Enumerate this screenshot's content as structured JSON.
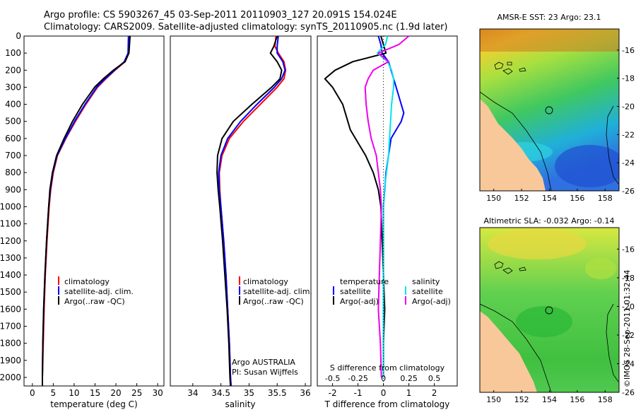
{
  "title_line1": "Argo profile: CS 5903267_45 03-Sep-2011 20110903_127 20.091S 154.024E",
  "title_line2": "Climatology: CARS2009. Satellite-adjusted climatology: synTS_20110905.nc (1.9d later)",
  "colors": {
    "climatology": "#ff0000",
    "satellite": "#0000ff",
    "argo": "#000000",
    "salinity_satellite": "#00e5ee",
    "salinity_argo": "#ee00ee",
    "land": "#f8c89a"
  },
  "depth_axis": {
    "ylim": [
      0,
      2050
    ],
    "ticks": [
      0,
      100,
      200,
      300,
      400,
      500,
      600,
      700,
      800,
      900,
      1000,
      1100,
      1200,
      1300,
      1400,
      1500,
      1600,
      1700,
      1800,
      1900,
      2000
    ]
  },
  "temperature_panel": {
    "xlabel": "temperature (deg C)",
    "xlim": [
      -2,
      31.5
    ],
    "xticks": [
      "0",
      "5",
      "10",
      "15",
      "20",
      "25",
      "30"
    ],
    "legend": [
      "climatology",
      "satellite-adj. clim.",
      "Argo(..raw -QC)"
    ]
  },
  "salinity_panel": {
    "xlabel": "salinity",
    "xlim": [
      33.6,
      36.1
    ],
    "xticks": [
      "34",
      "34.5",
      "35",
      "35.5",
      "36"
    ],
    "legend": [
      "climatology",
      "satellite-adj. clim.",
      "Argo(..raw -QC)"
    ],
    "note_line1": "Argo AUSTRALIA",
    "note_line2": "PI: Susan Wijffels"
  },
  "difference_panel": {
    "xlabel": "T difference from climatology",
    "xlim": [
      -2.6,
      2.9
    ],
    "xticks": [
      "-2",
      "-1",
      "0",
      "1",
      "2"
    ],
    "top_label": "S difference from climatology",
    "s_ticks": [
      "-0.5",
      "-0.25",
      "0",
      "0.25",
      "0.5"
    ],
    "legend_temperature_title": "temperature",
    "legend_salinity_title": "salinity",
    "legend_satellite": "satellite",
    "legend_argo": "Argo(-adj)"
  },
  "map_sst": {
    "title": "AMSR-E SST: 23  Argo: 23.1",
    "xticks": [
      "150",
      "152",
      "154",
      "156",
      "158"
    ],
    "yticks": [
      "-16",
      "-18",
      "-20",
      "-22",
      "-24",
      "-26"
    ]
  },
  "map_sla": {
    "title": "Altimetric SLA: -0.032  Argo: -0.14",
    "xticks": [
      "150",
      "152",
      "154",
      "156",
      "158"
    ],
    "yticks": [
      "-16",
      "-18",
      "-20",
      "-22",
      "-24",
      "-26"
    ]
  },
  "credit": "©IMOS 28-Sep-2011 01:32:44",
  "chart_data": [
    {
      "type": "line",
      "title": "temperature profile",
      "xlabel": "temperature (deg C)",
      "ylabel": "depth",
      "xlim": [
        -2,
        31.5
      ],
      "ylim": [
        0,
        2050
      ],
      "series": [
        {
          "name": "climatology",
          "color": "#ff0000",
          "depth": [
            0,
            100,
            150,
            200,
            250,
            300,
            400,
            500,
            600,
            700,
            800,
            900,
            1000,
            1200,
            1400,
            1600,
            1800,
            2000,
            2050
          ],
          "values": [
            23.3,
            23.1,
            22.2,
            19.8,
            17.6,
            15.6,
            12.8,
            10.3,
            8.0,
            6.0,
            5.0,
            4.4,
            4.0,
            3.5,
            3.1,
            2.8,
            2.6,
            2.4,
            2.4
          ]
        },
        {
          "name": "satellite-adj. clim.",
          "color": "#0000ff",
          "depth": [
            0,
            100,
            150,
            200,
            250,
            300,
            400,
            500,
            600,
            700,
            800,
            900,
            1000,
            1200,
            1400,
            1600,
            1800,
            2000,
            2050
          ],
          "values": [
            23.0,
            22.9,
            22.0,
            19.7,
            17.4,
            15.4,
            12.6,
            10.1,
            7.9,
            5.9,
            4.9,
            4.3,
            3.9,
            3.4,
            3.0,
            2.7,
            2.5,
            2.4,
            2.4
          ]
        },
        {
          "name": "Argo(..raw -QC)",
          "color": "#000000",
          "depth": [
            0,
            100,
            150,
            200,
            250,
            300,
            400,
            500,
            600,
            700,
            800,
            900,
            1000,
            1200,
            1400,
            1600,
            1800,
            2000,
            2050
          ],
          "values": [
            23.4,
            23.1,
            22.2,
            19.4,
            17.0,
            14.9,
            12.0,
            9.6,
            7.6,
            5.8,
            4.8,
            4.2,
            3.9,
            3.4,
            3.0,
            2.7,
            2.5,
            2.4,
            2.4
          ]
        }
      ]
    },
    {
      "type": "line",
      "title": "salinity profile",
      "xlabel": "salinity",
      "ylabel": "depth",
      "xlim": [
        33.6,
        36.1
      ],
      "ylim": [
        0,
        2050
      ],
      "series": [
        {
          "name": "climatology",
          "color": "#ff0000",
          "depth": [
            0,
            60,
            100,
            150,
            200,
            250,
            300,
            400,
            500,
            600,
            700,
            800,
            900,
            1000,
            1200,
            1400,
            1600,
            1800,
            2000,
            2050
          ],
          "values": [
            35.48,
            35.46,
            35.52,
            35.62,
            35.65,
            35.62,
            35.5,
            35.2,
            34.9,
            34.65,
            34.52,
            34.47,
            34.48,
            34.5,
            34.55,
            34.59,
            34.62,
            34.65,
            34.67,
            34.68
          ]
        },
        {
          "name": "satellite-adj. clim.",
          "color": "#0000ff",
          "depth": [
            0,
            60,
            100,
            150,
            200,
            250,
            300,
            400,
            500,
            600,
            700,
            800,
            900,
            1000,
            1200,
            1400,
            1600,
            1800,
            2000,
            2050
          ],
          "values": [
            35.52,
            35.5,
            35.5,
            35.6,
            35.64,
            35.58,
            35.45,
            35.14,
            34.85,
            34.62,
            34.5,
            34.46,
            34.47,
            34.5,
            34.55,
            34.59,
            34.62,
            34.65,
            34.67,
            34.68
          ]
        },
        {
          "name": "Argo(..raw -QC)",
          "color": "#000000",
          "depth": [
            0,
            60,
            100,
            150,
            200,
            250,
            300,
            400,
            500,
            600,
            700,
            800,
            900,
            1000,
            1200,
            1400,
            1600,
            1800,
            2000,
            2050
          ],
          "values": [
            35.5,
            35.44,
            35.38,
            35.5,
            35.58,
            35.55,
            35.4,
            35.05,
            34.72,
            34.52,
            34.44,
            34.43,
            34.45,
            34.48,
            34.53,
            34.57,
            34.61,
            34.64,
            34.66,
            34.67
          ]
        }
      ]
    },
    {
      "type": "line",
      "title": "difference from climatology",
      "xlabel": "T difference from climatology",
      "ylabel": "depth",
      "xlim": [
        -2.6,
        2.9
      ],
      "ylim": [
        0,
        2050
      ],
      "series": [
        {
          "name": "temperature satellite",
          "color": "#0000ff",
          "depth": [
            0,
            50,
            100,
            150,
            200,
            250,
            300,
            350,
            400,
            450,
            500,
            550,
            600,
            700,
            800,
            900,
            1000,
            1200,
            1400,
            1600,
            1800,
            2000
          ],
          "values": [
            -0.2,
            -0.1,
            -0.05,
            0.2,
            0.3,
            0.4,
            0.5,
            0.6,
            0.7,
            0.8,
            0.7,
            0.5,
            0.3,
            0.2,
            0.1,
            0.05,
            0.0,
            0.0,
            0.0,
            0.0,
            0.0,
            0.0
          ]
        },
        {
          "name": "temperature Argo(-adj)",
          "color": "#000000",
          "depth": [
            0,
            50,
            100,
            150,
            200,
            250,
            300,
            350,
            400,
            450,
            500,
            550,
            600,
            700,
            800,
            900,
            1000,
            1200,
            1400,
            1600,
            1800,
            2000
          ],
          "values": [
            -0.1,
            0.0,
            0.1,
            -1.2,
            -1.9,
            -2.3,
            -2.0,
            -1.8,
            -1.6,
            -1.5,
            -1.4,
            -1.3,
            -1.1,
            -0.7,
            -0.4,
            -0.2,
            -0.1,
            -0.05,
            0.0,
            0.05,
            0.0,
            0.0
          ]
        },
        {
          "name": "salinity satellite",
          "color": "#00e5ee",
          "depth": [
            0,
            50,
            100,
            150,
            200,
            250,
            300,
            400,
            500,
            600,
            700,
            800,
            900,
            1000,
            1200,
            1400,
            1600,
            1800,
            2000
          ],
          "s_values": [
            0.04,
            0.02,
            -0.06,
            0.04,
            0.08,
            0.1,
            0.1,
            0.08,
            0.07,
            0.06,
            0.05,
            0.03,
            0.01,
            0.0,
            0.0,
            0.0,
            0.0,
            0.0,
            0.0
          ]
        },
        {
          "name": "salinity Argo(-adj)",
          "color": "#ee00ee",
          "depth": [
            0,
            50,
            100,
            150,
            200,
            250,
            300,
            400,
            500,
            600,
            700,
            800,
            900,
            1000,
            1200,
            1400,
            1600,
            1800,
            2000
          ],
          "s_values": [
            0.25,
            0.15,
            -0.05,
            0.05,
            -0.1,
            -0.15,
            -0.18,
            -0.17,
            -0.15,
            -0.12,
            -0.07,
            -0.05,
            -0.03,
            -0.02,
            -0.03,
            -0.04,
            -0.05,
            -0.03,
            -0.02
          ]
        }
      ]
    },
    {
      "type": "heatmap",
      "title": "AMSR-E SST: 23  Argo: 23.1",
      "xlim": [
        149,
        159
      ],
      "ylim": [
        -26,
        -14.5
      ],
      "x_ticks": [
        150,
        152,
        154,
        156,
        158
      ],
      "y_ticks": [
        -16,
        -18,
        -20,
        -22,
        -24,
        -26
      ],
      "argo_position": [
        154.024,
        -20.091
      ]
    },
    {
      "type": "heatmap",
      "title": "Altimetric SLA: -0.032  Argo: -0.14",
      "xlim": [
        149,
        159
      ],
      "ylim": [
        -26,
        -14.5
      ],
      "x_ticks": [
        150,
        152,
        154,
        156,
        158
      ],
      "y_ticks": [
        -16,
        -18,
        -20,
        -22,
        -24,
        -26
      ],
      "argo_position": [
        154.024,
        -20.091
      ]
    }
  ]
}
